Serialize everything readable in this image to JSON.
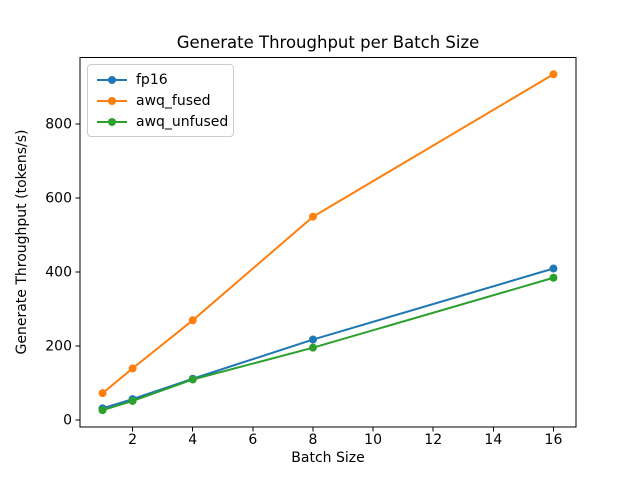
{
  "chart_data": {
    "type": "line",
    "title": "Generate Throughput per Batch Size",
    "xlabel": "Batch Size",
    "ylabel": "Generate Throughput (tokens/s)",
    "x": [
      1,
      2,
      4,
      8,
      16
    ],
    "series": [
      {
        "name": "fp16",
        "color": "#1f77b4",
        "values": [
          32,
          57,
          112,
          218,
          410
        ]
      },
      {
        "name": "awq_fused",
        "color": "#ff7f0e",
        "values": [
          73,
          140,
          270,
          550,
          935
        ]
      },
      {
        "name": "awq_unfused",
        "color": "#2ca02c",
        "values": [
          27,
          52,
          110,
          196,
          385
        ]
      }
    ],
    "xlim": [
      0.25,
      16.75
    ],
    "ylim": [
      -18.4,
      980.4
    ],
    "xticks": [
      2,
      4,
      6,
      8,
      10,
      12,
      14,
      16
    ],
    "yticks": [
      0,
      200,
      400,
      600,
      800
    ],
    "grid": false,
    "legend_position": "upper-left",
    "marker": "circle",
    "axis_color": "#000000",
    "background_color": "#ffffff"
  }
}
